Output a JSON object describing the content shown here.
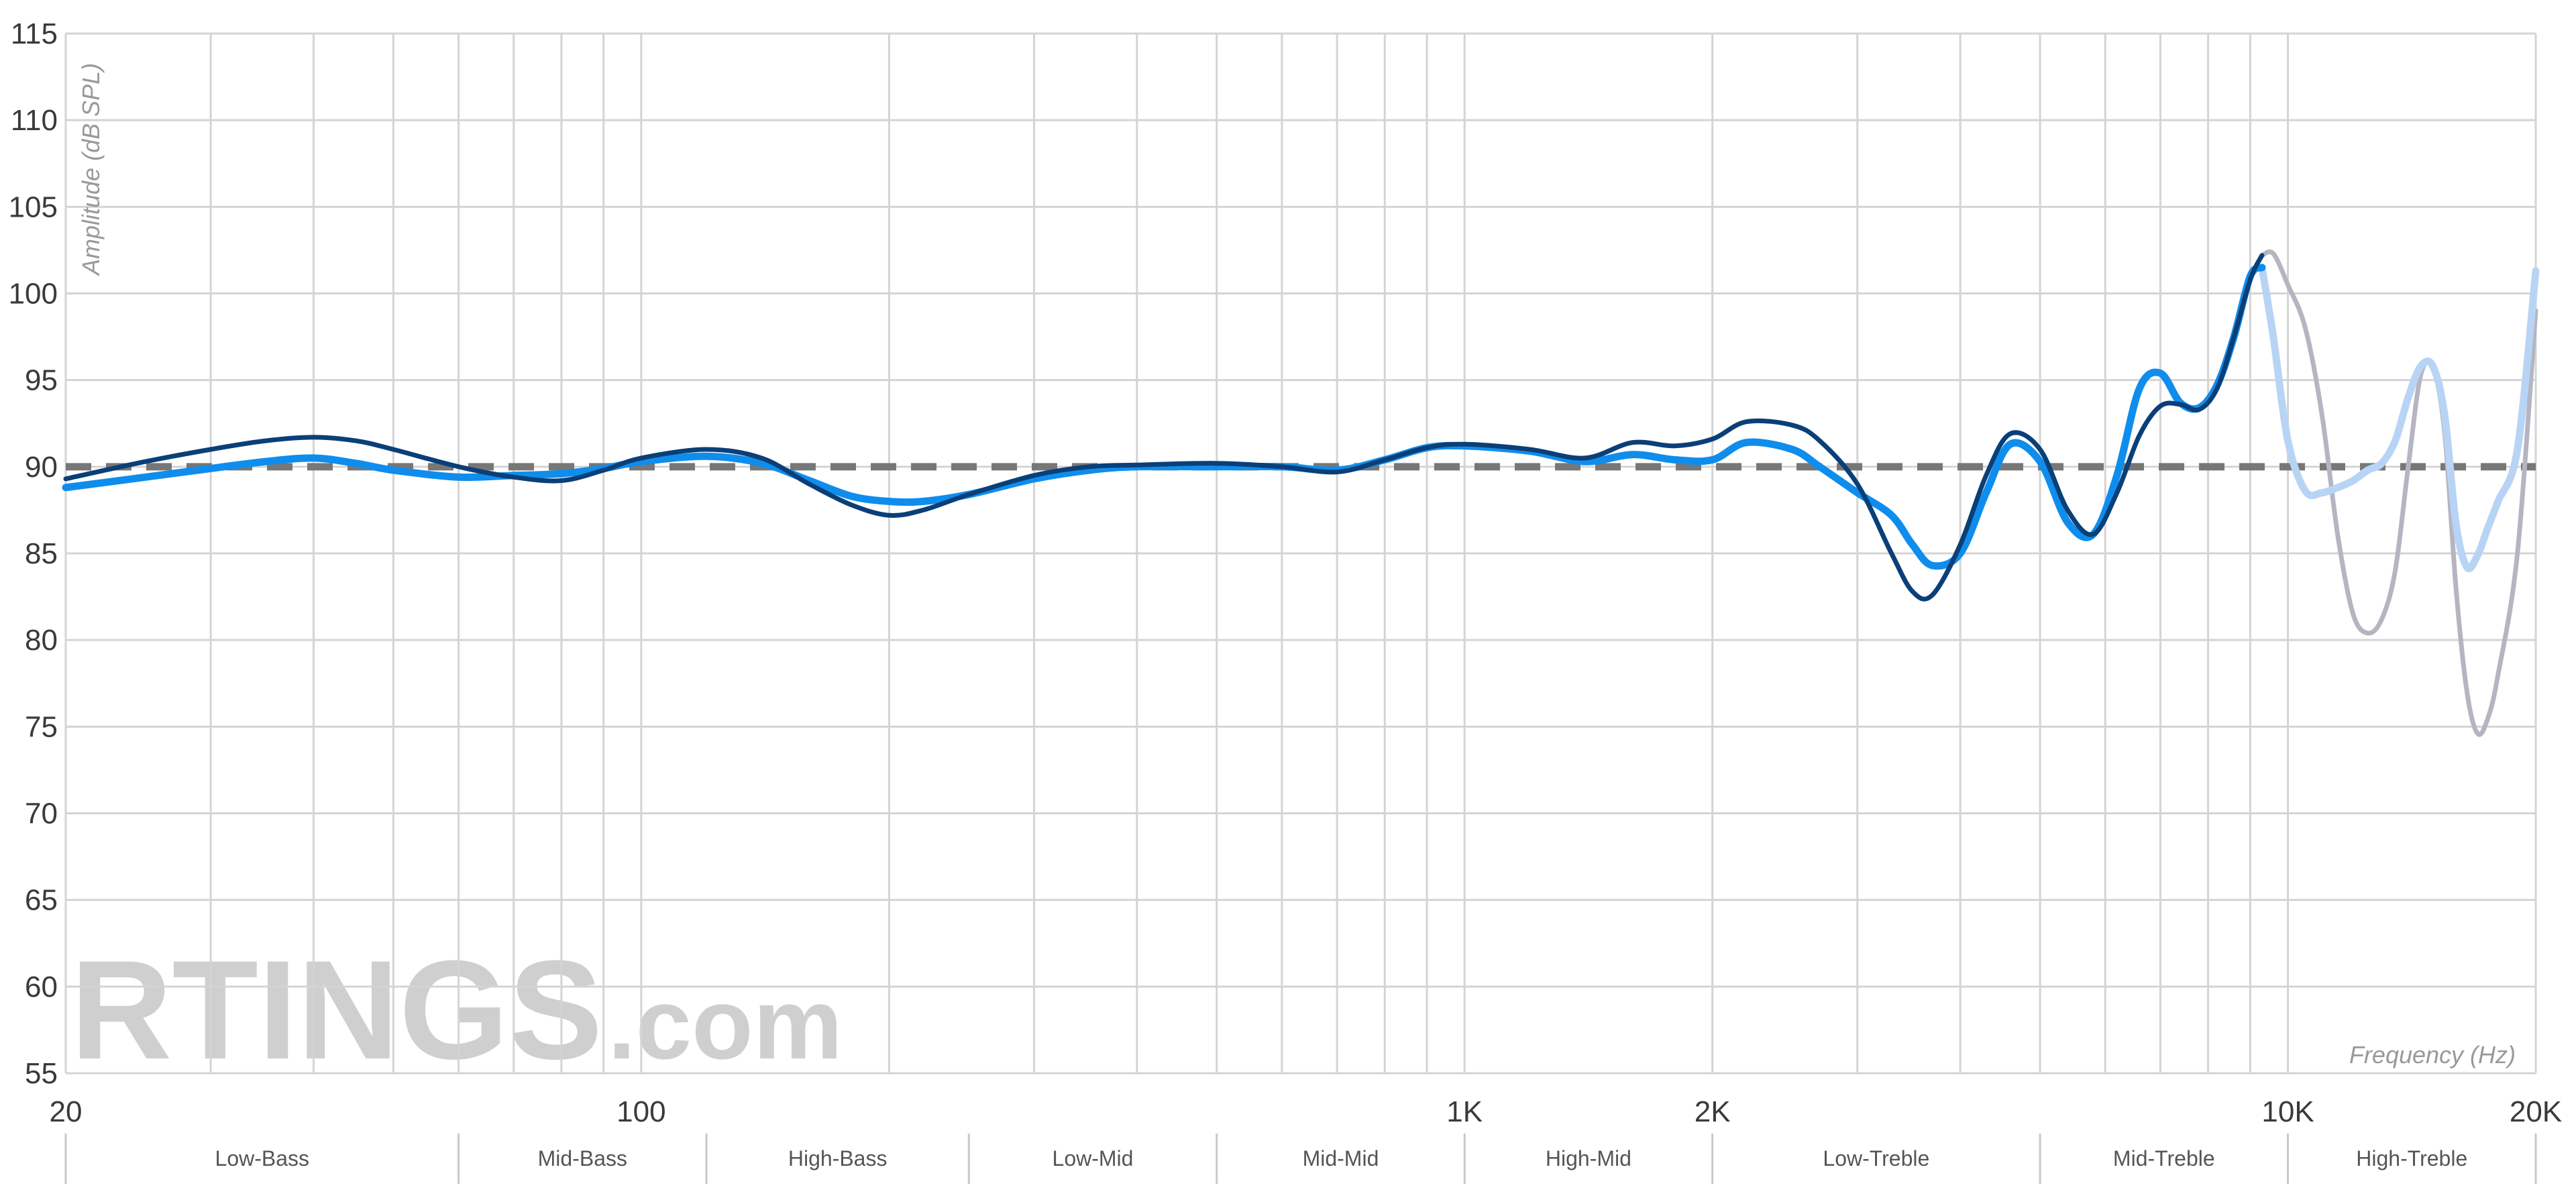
{
  "chart_data": {
    "type": "line",
    "xlabel": "Frequency (Hz)",
    "ylabel": "Amplitude (dB SPL)",
    "xscale": "log",
    "xlim": [
      20,
      20000
    ],
    "ylim": [
      55,
      115
    ],
    "grid": true,
    "x_tick_labels": [
      {
        "value": 20,
        "label": "20"
      },
      {
        "value": 100,
        "label": "100"
      },
      {
        "value": 1000,
        "label": "1K"
      },
      {
        "value": 2000,
        "label": "2K"
      },
      {
        "value": 10000,
        "label": "10K"
      },
      {
        "value": 20000,
        "label": "20K"
      }
    ],
    "y_ticks": [
      55,
      60,
      65,
      70,
      75,
      80,
      85,
      90,
      95,
      100,
      105,
      110,
      115
    ],
    "target_line": {
      "value": 90,
      "color": "#777777",
      "style": "dashed"
    },
    "bands": [
      {
        "name": "Low-Bass",
        "from": 20,
        "to": 60
      },
      {
        "name": "Mid-Bass",
        "from": 60,
        "to": 120
      },
      {
        "name": "High-Bass",
        "from": 120,
        "to": 250
      },
      {
        "name": "Low-Mid",
        "from": 250,
        "to": 500
      },
      {
        "name": "Mid-Mid",
        "from": 500,
        "to": 1000
      },
      {
        "name": "High-Mid",
        "from": 1000,
        "to": 2000
      },
      {
        "name": "Low-Treble",
        "from": 2000,
        "to": 5000
      },
      {
        "name": "Mid-Treble",
        "from": 5000,
        "to": 10000
      },
      {
        "name": "High-Treble",
        "from": 10000,
        "to": 20000
      }
    ],
    "series": [
      {
        "color": "#0f8ded",
        "color_extended": "#b8d4f5",
        "x": [
          20,
          25,
          30,
          35,
          40,
          45,
          50,
          60,
          70,
          80,
          90,
          100,
          120,
          140,
          160,
          180,
          200,
          220,
          250,
          300,
          350,
          400,
          500,
          600,
          700,
          800,
          900,
          1000,
          1200,
          1400,
          1600,
          1800,
          2000,
          2200,
          2500,
          2700,
          3000,
          3300,
          3500,
          3700,
          4000,
          4300,
          4600,
          5000,
          5400,
          5800,
          6200,
          6600,
          7000,
          7400,
          7800,
          8200,
          8600,
          9000,
          9300,
          9600,
          10000,
          10500,
          11000,
          11500,
          12000,
          12500,
          13000,
          13500,
          14000,
          14500,
          15000,
          15500,
          16000,
          16500,
          17000,
          17500,
          18000,
          19000,
          20000
        ],
        "values": [
          88.8,
          89.4,
          89.9,
          90.3,
          90.5,
          90.2,
          89.8,
          89.4,
          89.5,
          89.6,
          89.9,
          90.3,
          90.6,
          90.2,
          89.2,
          88.3,
          88.0,
          88.0,
          88.4,
          89.3,
          89.8,
          90.0,
          90.0,
          90.0,
          89.8,
          90.4,
          91.1,
          91.2,
          90.9,
          90.3,
          90.7,
          90.4,
          90.4,
          91.4,
          91.0,
          90.0,
          88.5,
          87.2,
          85.5,
          84.3,
          85.0,
          88.5,
          91.3,
          90.3,
          86.8,
          86.1,
          89.5,
          94.5,
          95.4,
          93.7,
          93.4,
          94.7,
          97.5,
          101.0,
          101.5,
          97.5,
          91.5,
          88.6,
          88.5,
          88.8,
          89.2,
          89.8,
          90.2,
          91.5,
          94.0,
          95.8,
          95.8,
          93.0,
          86.7,
          84.2,
          84.9,
          86.5,
          88.0,
          91.0,
          101.3
        ]
      },
      {
        "color": "#0a3f78",
        "color_extended": "#b5b5c2",
        "x": [
          20,
          25,
          30,
          35,
          40,
          45,
          50,
          60,
          70,
          80,
          90,
          100,
          120,
          140,
          160,
          180,
          200,
          220,
          250,
          300,
          350,
          400,
          500,
          600,
          700,
          800,
          900,
          1000,
          1200,
          1400,
          1600,
          1800,
          2000,
          2200,
          2500,
          2700,
          3000,
          3300,
          3500,
          3700,
          4000,
          4300,
          4600,
          5000,
          5400,
          5800,
          6200,
          6600,
          7000,
          7400,
          7800,
          8200,
          8600,
          9000,
          9300,
          9600,
          10000,
          10500,
          11000,
          11500,
          12000,
          12500,
          13000,
          13500,
          14000,
          14500,
          15000,
          15500,
          16000,
          16500,
          17000,
          17500,
          18000,
          19000,
          20000
        ],
        "values": [
          89.3,
          90.3,
          91.0,
          91.5,
          91.7,
          91.5,
          91.0,
          90.0,
          89.4,
          89.2,
          89.8,
          90.5,
          91.0,
          90.5,
          89.0,
          87.8,
          87.2,
          87.5,
          88.4,
          89.5,
          90.0,
          90.1,
          90.2,
          90.0,
          89.7,
          90.4,
          91.1,
          91.3,
          91.0,
          90.5,
          91.4,
          91.2,
          91.6,
          92.6,
          92.4,
          91.5,
          89.0,
          85.0,
          82.8,
          82.6,
          85.5,
          89.5,
          91.9,
          91.0,
          87.5,
          86.1,
          88.5,
          91.8,
          93.5,
          93.6,
          93.3,
          94.5,
          97.5,
          100.8,
          102.2,
          102.3,
          100.5,
          98.0,
          93.0,
          86.0,
          81.5,
          80.4,
          81.2,
          84.0,
          90.0,
          95.3,
          95.7,
          92.0,
          83.0,
          77.0,
          74.6,
          75.5,
          78.0,
          85.0,
          99.0
        ]
      }
    ]
  },
  "watermark": {
    "brand": "RTINGS",
    "suffix": ".com"
  }
}
